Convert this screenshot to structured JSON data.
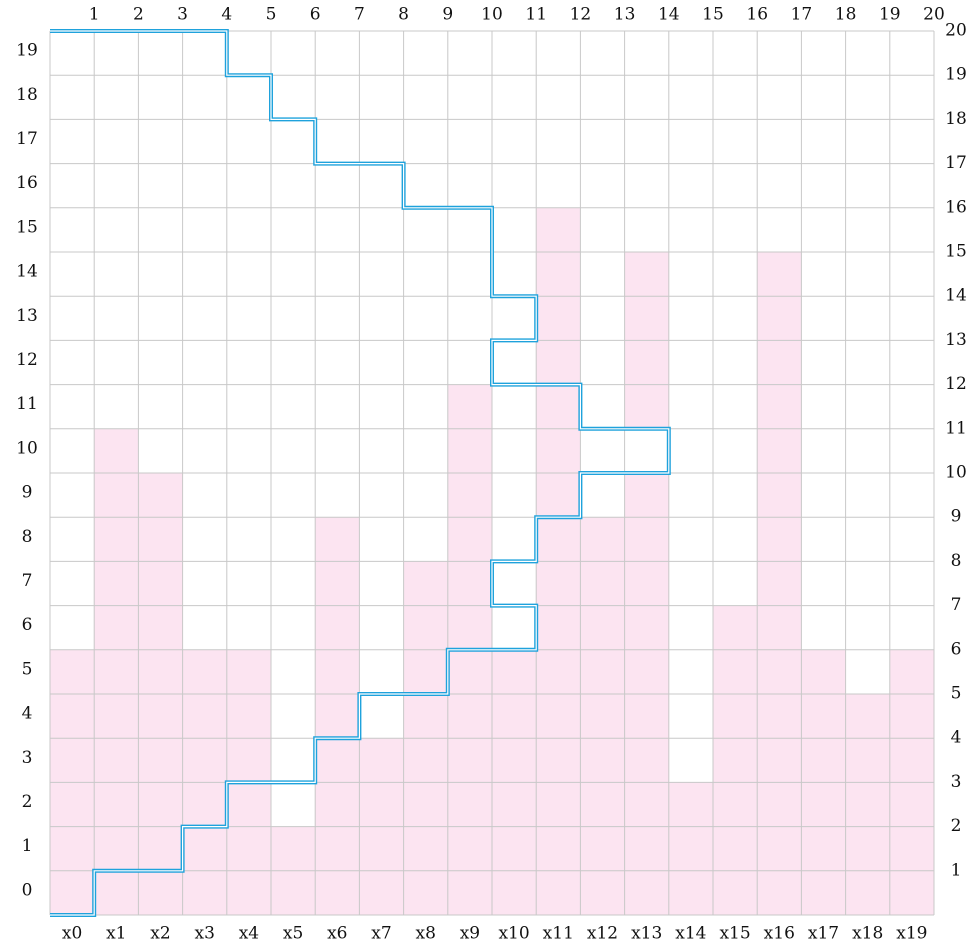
{
  "top_labels": [
    "1",
    "2",
    "3",
    "4",
    "5",
    "6",
    "7",
    "8",
    "9",
    "10",
    "11",
    "12",
    "13",
    "14",
    "15",
    "16",
    "17",
    "18",
    "19",
    "20"
  ],
  "left_labels": [
    "0",
    "1",
    "2",
    "3",
    "4",
    "5",
    "6",
    "7",
    "8",
    "9",
    "10",
    "11",
    "12",
    "13",
    "14",
    "15",
    "16",
    "17",
    "18",
    "19"
  ],
  "right_labels": [
    "1",
    "2",
    "3",
    "4",
    "5",
    "6",
    "7",
    "8",
    "9",
    "10",
    "11",
    "12",
    "13",
    "14",
    "15",
    "16",
    "17",
    "18",
    "19",
    "20"
  ],
  "bottom_labels": [
    "x0",
    "x1",
    "x2",
    "x3",
    "x4",
    "x5",
    "x6",
    "x7",
    "x8",
    "x9",
    "x10",
    "x11",
    "x12",
    "x13",
    "x14",
    "x15",
    "x16",
    "x17",
    "x18",
    "x19"
  ],
  "grid": {
    "columns": 20,
    "rows": 20
  },
  "column_heights": [
    6,
    11,
    10,
    6,
    6,
    2,
    9,
    4,
    8,
    12,
    6,
    16,
    9,
    15,
    3,
    7,
    15,
    6,
    5,
    6
  ],
  "column_gaps": [
    {
      "column": 5,
      "from": 2,
      "to": 3
    },
    {
      "column": 7,
      "from": 4,
      "to": 5
    },
    {
      "column": 10,
      "from": 6,
      "to": 12
    },
    {
      "column": 12,
      "from": 9,
      "to": 11
    },
    {
      "column": 13,
      "from": 10,
      "to": 11
    },
    {
      "column": 14,
      "from": 3,
      "to": 13
    }
  ],
  "bottom_path": [
    [
      0,
      0
    ],
    [
      1,
      0
    ],
    [
      1,
      1
    ],
    [
      3,
      1
    ],
    [
      3,
      2
    ],
    [
      4,
      2
    ],
    [
      4,
      3
    ],
    [
      6,
      3
    ],
    [
      6,
      4
    ],
    [
      7,
      4
    ],
    [
      7,
      5
    ],
    [
      9,
      5
    ],
    [
      9,
      6
    ],
    [
      11,
      6
    ],
    [
      11,
      7
    ],
    [
      10,
      7
    ],
    [
      10,
      8
    ],
    [
      11,
      8
    ],
    [
      11,
      9
    ],
    [
      12,
      9
    ],
    [
      12,
      10
    ],
    [
      14,
      10
    ],
    [
      14,
      11
    ],
    [
      12,
      11
    ],
    [
      12,
      12
    ],
    [
      10,
      12
    ],
    [
      10,
      13
    ],
    [
      11,
      13
    ],
    [
      11,
      14
    ],
    [
      10,
      14
    ],
    [
      10,
      16
    ],
    [
      8,
      16
    ],
    [
      8,
      17
    ],
    [
      6,
      17
    ],
    [
      6,
      18
    ],
    [
      5,
      18
    ],
    [
      5,
      19
    ],
    [
      4,
      19
    ],
    [
      4,
      20
    ],
    [
      0,
      20
    ]
  ],
  "colors": {
    "fill": "#fce4f1",
    "grid": "#c8c8c8",
    "path": "#1fa2dc",
    "text": "#111111"
  }
}
